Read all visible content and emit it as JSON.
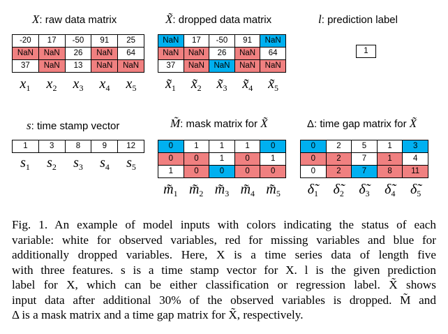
{
  "panels": {
    "x_raw": {
      "title_symbol": "X",
      "title_text": ": raw data matrix",
      "cells": [
        [
          {
            "v": "-20",
            "c": "white"
          },
          {
            "v": "17",
            "c": "white"
          },
          {
            "v": "-50",
            "c": "white"
          },
          {
            "v": "91",
            "c": "white"
          },
          {
            "v": "25",
            "c": "white"
          }
        ],
        [
          {
            "v": "NaN",
            "c": "red"
          },
          {
            "v": "NaN",
            "c": "red"
          },
          {
            "v": "26",
            "c": "white"
          },
          {
            "v": "NaN",
            "c": "red"
          },
          {
            "v": "64",
            "c": "white"
          }
        ],
        [
          {
            "v": "37",
            "c": "white"
          },
          {
            "v": "NaN",
            "c": "red"
          },
          {
            "v": "13",
            "c": "white"
          },
          {
            "v": "NaN",
            "c": "red"
          },
          {
            "v": "NaN",
            "c": "red"
          }
        ]
      ],
      "labels": [
        {
          "base": "x",
          "sub": "1"
        },
        {
          "base": "x",
          "sub": "2"
        },
        {
          "base": "x",
          "sub": "3"
        },
        {
          "base": "x",
          "sub": "4"
        },
        {
          "base": "x",
          "sub": "5"
        }
      ]
    },
    "x_dropped": {
      "title_symbol": "X̃",
      "title_text": ": dropped data matrix",
      "cells": [
        [
          {
            "v": "NaN",
            "c": "blue"
          },
          {
            "v": "17",
            "c": "white"
          },
          {
            "v": "-50",
            "c": "white"
          },
          {
            "v": "91",
            "c": "white"
          },
          {
            "v": "NaN",
            "c": "blue"
          }
        ],
        [
          {
            "v": "NaN",
            "c": "red"
          },
          {
            "v": "NaN",
            "c": "red"
          },
          {
            "v": "26",
            "c": "white"
          },
          {
            "v": "NaN",
            "c": "red"
          },
          {
            "v": "64",
            "c": "white"
          }
        ],
        [
          {
            "v": "37",
            "c": "white"
          },
          {
            "v": "NaN",
            "c": "red"
          },
          {
            "v": "NaN",
            "c": "blue"
          },
          {
            "v": "NaN",
            "c": "red"
          },
          {
            "v": "NaN",
            "c": "red"
          }
        ]
      ],
      "labels": [
        {
          "base": "x̃",
          "sub": "1"
        },
        {
          "base": "x̃",
          "sub": "2"
        },
        {
          "base": "x̃",
          "sub": "3"
        },
        {
          "base": "x̃",
          "sub": "4"
        },
        {
          "base": "x̃",
          "sub": "5"
        }
      ]
    },
    "label": {
      "title_symbol": "l",
      "title_text": ": prediction label",
      "cells": [
        [
          {
            "v": "1",
            "c": "white"
          }
        ]
      ]
    },
    "timestamp": {
      "title_symbol": "s",
      "title_text": ": time stamp vector",
      "cells": [
        [
          {
            "v": "1",
            "c": "white"
          },
          {
            "v": "3",
            "c": "white"
          },
          {
            "v": "8",
            "c": "white"
          },
          {
            "v": "9",
            "c": "white"
          },
          {
            "v": "12",
            "c": "white"
          }
        ]
      ],
      "labels": [
        {
          "base": "s",
          "sub": "1"
        },
        {
          "base": "s",
          "sub": "2"
        },
        {
          "base": "s",
          "sub": "3"
        },
        {
          "base": "s",
          "sub": "4"
        },
        {
          "base": "s",
          "sub": "5"
        }
      ]
    },
    "mask": {
      "title_symbol": "M̃",
      "title_text": ": mask matrix for ",
      "title_symbol2": "X̃",
      "cells": [
        [
          {
            "v": "0",
            "c": "blue"
          },
          {
            "v": "1",
            "c": "white"
          },
          {
            "v": "1",
            "c": "white"
          },
          {
            "v": "1",
            "c": "white"
          },
          {
            "v": "0",
            "c": "blue"
          }
        ],
        [
          {
            "v": "0",
            "c": "red"
          },
          {
            "v": "0",
            "c": "red"
          },
          {
            "v": "1",
            "c": "white"
          },
          {
            "v": "0",
            "c": "red"
          },
          {
            "v": "1",
            "c": "white"
          }
        ],
        [
          {
            "v": "1",
            "c": "white"
          },
          {
            "v": "0",
            "c": "red"
          },
          {
            "v": "0",
            "c": "blue"
          },
          {
            "v": "0",
            "c": "red"
          },
          {
            "v": "0",
            "c": "red"
          }
        ]
      ],
      "labels": [
        {
          "base": "m̃",
          "sub": "1"
        },
        {
          "base": "m̃",
          "sub": "2"
        },
        {
          "base": "m̃",
          "sub": "3"
        },
        {
          "base": "m̃",
          "sub": "4"
        },
        {
          "base": "m̃",
          "sub": "5"
        }
      ]
    },
    "timegap": {
      "title_symbol": "Δ",
      "title_text": ": time gap matrix for ",
      "title_symbol2": "X̃",
      "cells": [
        [
          {
            "v": "0",
            "c": "blue"
          },
          {
            "v": "2",
            "c": "white"
          },
          {
            "v": "5",
            "c": "white"
          },
          {
            "v": "1",
            "c": "white"
          },
          {
            "v": "3",
            "c": "blue"
          }
        ],
        [
          {
            "v": "0",
            "c": "red"
          },
          {
            "v": "2",
            "c": "red"
          },
          {
            "v": "7",
            "c": "white"
          },
          {
            "v": "1",
            "c": "red"
          },
          {
            "v": "4",
            "c": "white"
          }
        ],
        [
          {
            "v": "0",
            "c": "white"
          },
          {
            "v": "2",
            "c": "red"
          },
          {
            "v": "7",
            "c": "blue"
          },
          {
            "v": "8",
            "c": "red"
          },
          {
            "v": "11",
            "c": "red"
          }
        ]
      ],
      "labels": [
        {
          "base": "δ̃",
          "sub": "1"
        },
        {
          "base": "δ̃",
          "sub": "2"
        },
        {
          "base": "δ̃",
          "sub": "3"
        },
        {
          "base": "δ̃",
          "sub": "4"
        },
        {
          "base": "δ̃",
          "sub": "5"
        }
      ]
    }
  },
  "colors": {
    "white": "#ffffff",
    "red": "#f08080",
    "blue": "#00b0f0"
  },
  "caption": {
    "lines": [
      "Fig. 1.  An example of model inputs with colors indicating the status of each",
      "variable: white for observed variables, red for missing variables and blue for",
      "additionally dropped variables. Here, X is a time series data of length five",
      "with three features. s is a time stamp vector for X. l is the given prediction",
      "label for X, which can be either classification or regression label. X̃ shows",
      "input data after additional 30% of the observed variables is dropped. M̃ and",
      "Δ is a mask matrix and a time gap matrix for X̃, respectively."
    ]
  }
}
